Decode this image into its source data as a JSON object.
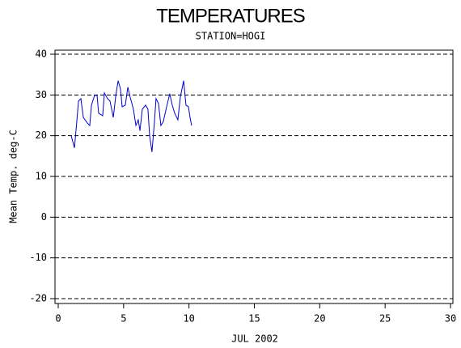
{
  "chart_data": {
    "type": "line",
    "title": "TEMPERATURES",
    "subtitle": "STATION=HOGI",
    "xlabel": "JUL 2002",
    "ylabel": "Mean Temp. deg-C",
    "xlim": [
      0,
      30
    ],
    "xticks": [
      0,
      5,
      10,
      15,
      20,
      25,
      30
    ],
    "ylim": [
      -20,
      40
    ],
    "yticks": [
      -20,
      -10,
      0,
      10,
      20,
      30,
      40
    ],
    "grid": true,
    "x": [
      0.99,
      1.24,
      1.42,
      1.55,
      1.73,
      1.92,
      2.23,
      2.41,
      2.54,
      2.78,
      2.97,
      3.09,
      3.4,
      3.53,
      3.77,
      3.96,
      4.21,
      4.39,
      4.58,
      4.76,
      4.89,
      5.13,
      5.32,
      5.5,
      5.75,
      5.94,
      6.12,
      6.25,
      6.43,
      6.68,
      6.86,
      6.99,
      7.17,
      7.36,
      7.48,
      7.67,
      7.85,
      8.04,
      8.29,
      8.53,
      8.72,
      8.91,
      9.15,
      9.34,
      9.59,
      9.77,
      9.96,
      10.08,
      10.2
    ],
    "series": [
      {
        "name": "Mean Temp",
        "color": "#0000cc",
        "values": [
          20.0,
          17.0,
          23.5,
          28.5,
          29.1,
          24.5,
          23.1,
          22.5,
          27.5,
          29.9,
          29.9,
          25.5,
          24.9,
          30.5,
          29.1,
          28.5,
          24.5,
          29.5,
          33.5,
          31.5,
          27.1,
          27.5,
          31.9,
          29.5,
          26.5,
          22.5,
          23.9,
          21.2,
          26.5,
          27.5,
          26.5,
          20.0,
          16.0,
          23.5,
          29.1,
          27.9,
          22.5,
          23.5,
          27.1,
          30.3,
          27.5,
          25.5,
          23.9,
          29.5,
          33.5,
          27.5,
          27.1,
          24.5,
          22.5
        ]
      }
    ]
  }
}
